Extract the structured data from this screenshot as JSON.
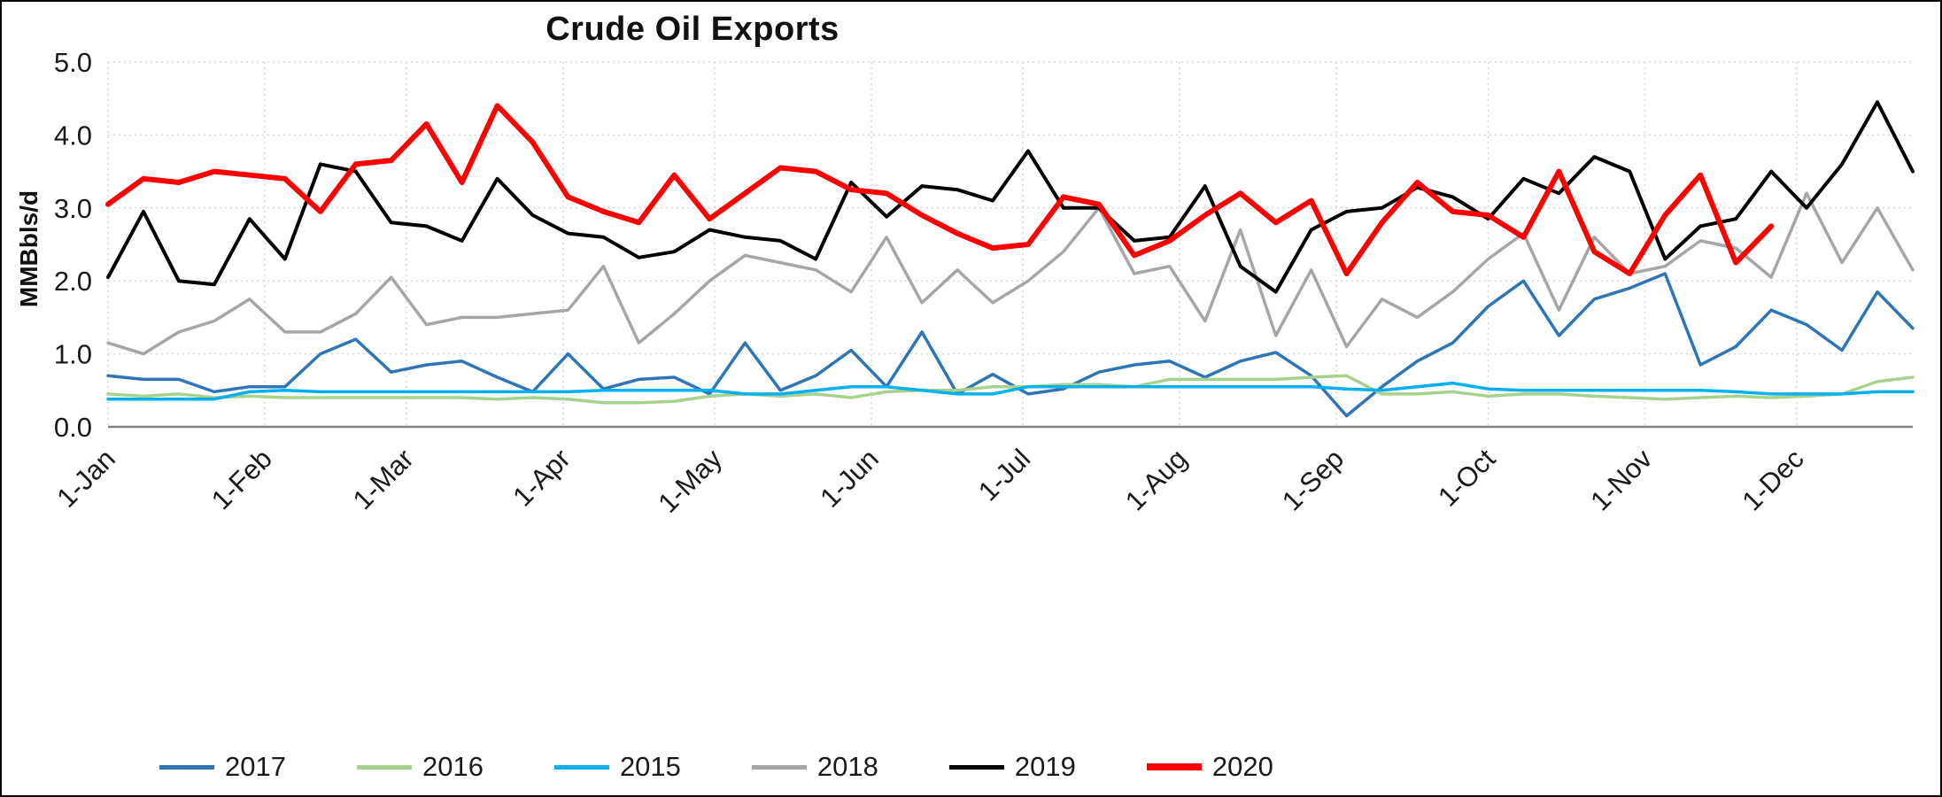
{
  "title": "Crude Oil Exports",
  "y_axis_label": "MMBbls/d",
  "chart_data": {
    "type": "line",
    "title": "Crude Oil Exports",
    "xlabel": "",
    "ylabel": "MMBbls/d",
    "ylim": [
      0,
      5
    ],
    "y_ticks": [
      "0.0",
      "1.0",
      "2.0",
      "3.0",
      "4.0",
      "5.0"
    ],
    "x_tick_labels": [
      "1-Jan",
      "1-Feb",
      "1-Mar",
      "1-Apr",
      "1-May",
      "1-Jun",
      "1-Jul",
      "1-Aug",
      "1-Sep",
      "1-Oct",
      "1-Nov",
      "1-Dec"
    ],
    "x_tick_days": [
      0,
      31,
      59,
      90,
      120,
      151,
      181,
      212,
      243,
      273,
      304,
      334
    ],
    "weeks_total": 52,
    "grid": true,
    "gridline_color": "#d9d9d9",
    "axis_line_color": "#808080",
    "legend_position": "bottom",
    "series": [
      {
        "name": "2017",
        "color": "#2E75B6",
        "width": 3.5,
        "values": [
          0.7,
          0.65,
          0.65,
          0.48,
          0.55,
          0.55,
          1.0,
          1.2,
          0.75,
          0.85,
          0.9,
          0.68,
          0.48,
          1.0,
          0.52,
          0.65,
          0.68,
          0.45,
          1.15,
          0.5,
          0.7,
          1.05,
          0.55,
          1.3,
          0.45,
          0.72,
          0.45,
          0.52,
          0.75,
          0.85,
          0.9,
          0.68,
          0.9,
          1.02,
          0.7,
          0.15,
          0.55,
          0.9,
          1.15,
          1.65,
          2.0,
          1.25,
          1.75,
          1.9,
          2.1,
          0.85,
          1.1,
          1.6,
          1.4,
          1.05,
          1.85,
          1.35
        ]
      },
      {
        "name": "2016",
        "color": "#A9D18E",
        "width": 3.5,
        "values": [
          0.45,
          0.42,
          0.45,
          0.4,
          0.42,
          0.4,
          0.4,
          0.4,
          0.4,
          0.4,
          0.4,
          0.38,
          0.4,
          0.38,
          0.33,
          0.33,
          0.35,
          0.42,
          0.45,
          0.42,
          0.45,
          0.4,
          0.48,
          0.5,
          0.5,
          0.55,
          0.55,
          0.58,
          0.58,
          0.55,
          0.65,
          0.65,
          0.65,
          0.65,
          0.68,
          0.7,
          0.45,
          0.45,
          0.48,
          0.42,
          0.45,
          0.45,
          0.42,
          0.4,
          0.38,
          0.4,
          0.42,
          0.4,
          0.42,
          0.45,
          0.62,
          0.68
        ]
      },
      {
        "name": "2015",
        "color": "#00B0F0",
        "width": 3.5,
        "values": [
          0.38,
          0.38,
          0.38,
          0.38,
          0.48,
          0.5,
          0.48,
          0.48,
          0.48,
          0.48,
          0.48,
          0.48,
          0.48,
          0.48,
          0.5,
          0.5,
          0.5,
          0.5,
          0.45,
          0.45,
          0.5,
          0.55,
          0.55,
          0.5,
          0.45,
          0.45,
          0.55,
          0.55,
          0.55,
          0.55,
          0.55,
          0.55,
          0.55,
          0.55,
          0.55,
          0.52,
          0.5,
          0.55,
          0.6,
          0.52,
          0.5,
          0.5,
          0.5,
          0.5,
          0.5,
          0.5,
          0.48,
          0.45,
          0.45,
          0.45,
          0.48,
          0.48
        ]
      },
      {
        "name": "2018",
        "color": "#A6A6A6",
        "width": 3.5,
        "values": [
          1.15,
          1.0,
          1.3,
          1.45,
          1.75,
          1.3,
          1.3,
          1.55,
          2.05,
          1.4,
          1.5,
          1.5,
          1.55,
          1.6,
          2.2,
          1.15,
          1.55,
          2.0,
          2.35,
          2.25,
          2.15,
          1.85,
          2.6,
          1.7,
          2.15,
          1.7,
          2.0,
          2.4,
          3.0,
          2.1,
          2.2,
          1.45,
          2.7,
          1.25,
          2.15,
          1.1,
          1.75,
          1.5,
          1.85,
          2.3,
          2.65,
          1.6,
          2.6,
          2.1,
          2.2,
          2.55,
          2.45,
          2.05,
          3.2,
          2.25,
          3.0,
          2.15
        ]
      },
      {
        "name": "2019",
        "color": "#000000",
        "width": 4,
        "values": [
          2.05,
          2.95,
          2.0,
          1.95,
          2.85,
          2.3,
          3.6,
          3.5,
          2.8,
          2.75,
          2.55,
          3.4,
          2.9,
          2.65,
          2.6,
          2.32,
          2.4,
          2.7,
          2.6,
          2.55,
          2.3,
          3.35,
          2.88,
          3.3,
          3.25,
          3.1,
          3.78,
          3.0,
          3.0,
          2.55,
          2.6,
          3.3,
          2.2,
          1.85,
          2.7,
          2.95,
          3.0,
          3.28,
          3.15,
          2.85,
          3.4,
          3.2,
          3.7,
          3.5,
          2.3,
          2.75,
          2.85,
          3.5,
          3.0,
          3.6,
          4.45,
          3.5
        ]
      },
      {
        "name": "2020",
        "color": "#FF0000",
        "width": 6,
        "values": [
          3.05,
          3.4,
          3.35,
          3.5,
          3.45,
          3.4,
          2.95,
          3.6,
          3.65,
          4.15,
          3.35,
          4.4,
          3.9,
          3.15,
          2.95,
          2.8,
          3.45,
          2.85,
          3.2,
          3.55,
          3.5,
          3.25,
          3.2,
          2.9,
          2.65,
          2.45,
          2.5,
          3.15,
          3.05,
          2.35,
          2.55,
          2.9,
          3.2,
          2.8,
          3.1,
          2.1,
          2.8,
          3.35,
          2.95,
          2.9,
          2.6,
          3.5,
          2.4,
          2.1,
          2.9,
          3.45,
          2.25,
          2.75
        ]
      }
    ],
    "legend_labels": [
      "2017",
      "2016",
      "2015",
      "2018",
      "2019",
      "2020"
    ]
  }
}
